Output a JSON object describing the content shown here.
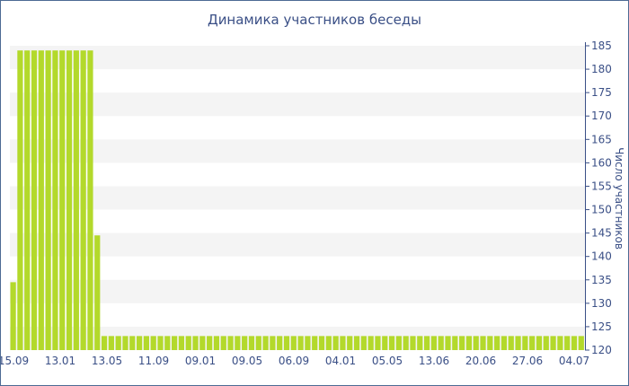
{
  "chart_data": {
    "type": "bar",
    "title": "Динамика участников беседы",
    "ylabel": "Число участников",
    "xlabel": "",
    "ylim": [
      120,
      185
    ],
    "y_ticks": [
      120,
      125,
      130,
      135,
      140,
      145,
      150,
      155,
      160,
      165,
      170,
      175,
      180,
      185
    ],
    "x_tick_labels": [
      "15.09",
      "13.01",
      "13.05",
      "11.09",
      "09.01",
      "09.05",
      "06.09",
      "04.01",
      "05.05",
      "13.06",
      "20.06",
      "27.06",
      "04.07"
    ],
    "grid": true,
    "bar_color": "#b3d92b",
    "values": [
      134.5,
      184,
      184,
      184,
      184,
      184,
      184,
      184,
      184,
      184,
      184,
      184,
      144.5,
      123,
      123,
      123,
      123,
      123,
      123,
      123,
      123,
      123,
      123,
      123,
      123,
      123,
      123,
      123,
      123,
      123,
      123,
      123,
      123,
      123,
      123,
      123,
      123,
      123,
      123,
      123,
      123,
      123,
      123,
      123,
      123,
      123,
      123,
      123,
      123,
      123,
      123,
      123,
      123,
      123,
      123,
      123,
      123,
      123,
      123,
      123,
      123,
      123,
      123,
      123,
      123,
      123,
      123,
      123,
      123,
      123,
      123,
      123,
      123,
      123,
      123,
      123,
      123,
      123,
      123,
      123,
      123,
      123
    ]
  }
}
